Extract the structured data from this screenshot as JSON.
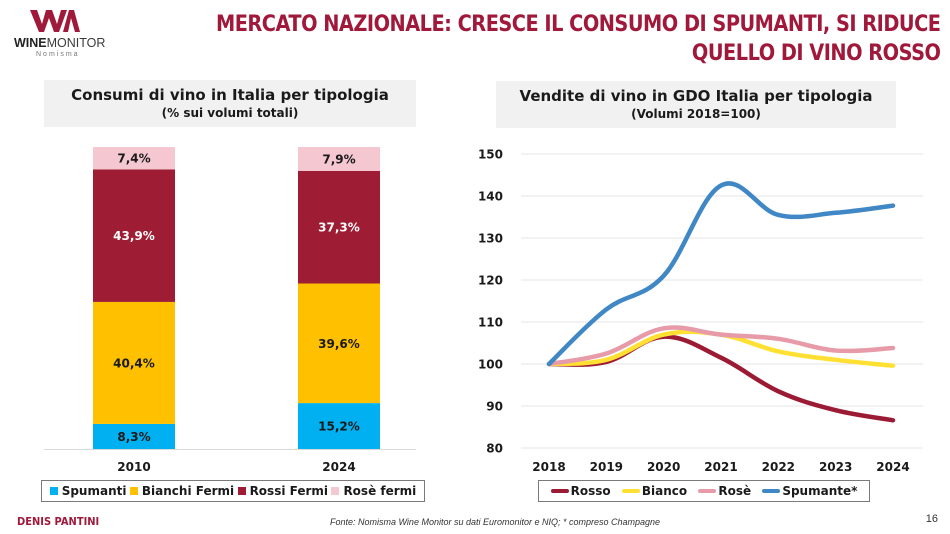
{
  "logo": {
    "brand_bold": "WINE",
    "brand_light": "MONITOR",
    "sub": "Nomisma"
  },
  "header": {
    "title_line1": "MERCATO NAZIONALE: CRESCE IL CONSUMO DI SPUMANTI, SI RIDUCE",
    "title_line2": "QUELLO DI VINO ROSSO"
  },
  "colors": {
    "brand": "#a0183a",
    "spumanti": "#00b0f0",
    "bianchi": "#ffc000",
    "rossi": "#9e1c34",
    "rose": "#f4c7d1",
    "line_rosso": "#9b1b35",
    "line_bianco": "#ffe033",
    "line_rose": "#e79aa8",
    "line_spumante": "#3f88c5"
  },
  "chart_data": [
    {
      "type": "bar",
      "stacked": true,
      "title": "Consumi di vino in Italia per tipologia",
      "subtitle": "(% sui volumi totali)",
      "categories": [
        "2010",
        "2024"
      ],
      "series": [
        {
          "name": "Spumanti",
          "values": [
            8.3,
            15.2
          ],
          "labels": [
            "8,3%",
            "15,2%"
          ],
          "color": "#00b0f0",
          "label_color": "#1a1a1a"
        },
        {
          "name": "Bianchi Fermi",
          "values": [
            40.4,
            39.6
          ],
          "labels": [
            "40,4%",
            "39,6%"
          ],
          "color": "#ffc000",
          "label_color": "#1a1a1a"
        },
        {
          "name": "Rossi Fermi",
          "values": [
            43.9,
            37.3
          ],
          "labels": [
            "43,9%",
            "37,3%"
          ],
          "color": "#9e1c34",
          "label_color": "#ffffff"
        },
        {
          "name": "Rosè fermi",
          "values": [
            7.4,
            7.9
          ],
          "labels": [
            "7,4%",
            "7,9%"
          ],
          "color": "#f4c7d1",
          "label_color": "#1a1a1a"
        }
      ],
      "ylim": [
        0,
        100
      ],
      "legend": "bottom"
    },
    {
      "type": "line",
      "title": "Vendite di vino in GDO Italia per tipologia",
      "subtitle": "(Volumi 2018=100)",
      "x": [
        "2018",
        "2019",
        "2020",
        "2021",
        "2022",
        "2023",
        "2024"
      ],
      "series": [
        {
          "name": "Rosso",
          "values": [
            100,
            100.5,
            106.5,
            101.5,
            93.5,
            89,
            86.6
          ],
          "color": "#9b1b35"
        },
        {
          "name": "Bianco",
          "values": [
            100,
            101,
            107,
            107,
            103,
            101,
            99.6
          ],
          "color": "#ffe033"
        },
        {
          "name": "Rosè",
          "values": [
            100,
            102.5,
            108.5,
            107,
            106,
            103.2,
            103.8
          ],
          "color": "#e79aa8"
        },
        {
          "name": "Spumante*",
          "values": [
            100,
            113,
            121,
            142.5,
            135.5,
            136,
            137.7
          ],
          "color": "#3f88c5"
        }
      ],
      "yticks": [
        "80",
        "90",
        "100",
        "110",
        "120",
        "130",
        "140",
        "150"
      ],
      "ylim": [
        80,
        150
      ],
      "grid": true,
      "legend": "bottom"
    }
  ],
  "footer": {
    "author": "DENIS PANTINI",
    "source": "Fonte: Nomisma Wine Monitor su dati Euromonitor e NIQ; * compreso Champagne",
    "page": "16"
  }
}
